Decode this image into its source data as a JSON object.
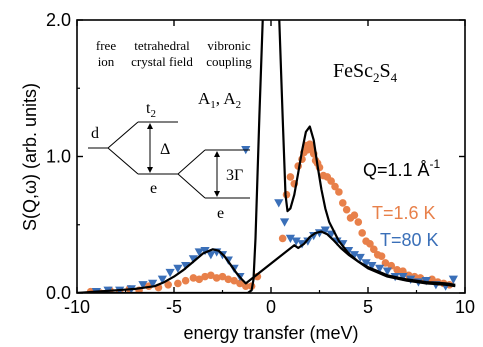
{
  "chart_data": {
    "type": "scatter",
    "xlabel": "energy transfer (meV)",
    "ylabel": "S(Q,ω) (arb. units)",
    "xlim": [
      -10,
      10
    ],
    "ylim": [
      0,
      2.0
    ],
    "x_ticks": [
      {
        "value": -10,
        "label": "-10"
      },
      {
        "value": -5,
        "label": "-5"
      },
      {
        "value": 0,
        "label": "0"
      },
      {
        "value": 5,
        "label": "5"
      },
      {
        "value": 10,
        "label": "10"
      }
    ],
    "y_ticks": [
      {
        "value": 0,
        "label": "0.0"
      },
      {
        "value": 1,
        "label": "1.0"
      },
      {
        "value": 2,
        "label": "2.0"
      }
    ],
    "grid": false,
    "legend_position": "right",
    "annotations": {
      "compound_base": "FeSc",
      "compound_sub1": "2",
      "compound_mid": "S",
      "compound_sub2": "4",
      "q_base": "Q=1.1 Å",
      "q_sup": "-1",
      "col_free_1": "free",
      "col_free_2": "ion",
      "col_tetra_1": "tetrahedral",
      "col_tetra_2": "crystal field",
      "col_vib_1": "vibronic",
      "col_vib_2": "coupling",
      "level_d": "d",
      "level_t_base": "t",
      "level_t_sub": "2",
      "level_e1": "e",
      "level_e2": "e",
      "delta": "Δ",
      "three_gamma": "3Γ",
      "a_label_1": "A",
      "a_sub_1": "1",
      "a_comma": ", A",
      "a_sub_2": "2"
    },
    "series": [
      {
        "name": "T=1.6 K",
        "color": "#e8804a",
        "marker": "circle",
        "x": [
          -9.3,
          -8.8,
          -8.3,
          -7.8,
          -7.3,
          -6.8,
          -6.3,
          -5.8,
          -5.3,
          -4.8,
          -4.4,
          -4.0,
          -3.7,
          -3.4,
          -3.1,
          -2.8,
          -2.5,
          -2.2,
          -1.9,
          -1.6,
          -1.3,
          -1.0,
          -0.7,
          0.6,
          0.8,
          1.0,
          1.2,
          1.4,
          1.6,
          1.7,
          1.8,
          1.9,
          2.0,
          2.1,
          2.2,
          2.3,
          2.4,
          2.5,
          2.7,
          2.9,
          3.1,
          3.3,
          3.5,
          3.7,
          3.9,
          4.1,
          4.3,
          4.5,
          4.7,
          4.9,
          5.1,
          5.3,
          5.5,
          5.7,
          5.9,
          6.2,
          6.5,
          6.8,
          7.1,
          7.4,
          7.7,
          8.0,
          8.3,
          8.6,
          8.9,
          9.2
        ],
        "y": [
          0.01,
          0.0,
          0.02,
          0.01,
          0.03,
          0.02,
          0.05,
          0.04,
          0.06,
          0.07,
          0.09,
          0.11,
          0.1,
          0.12,
          0.13,
          0.11,
          0.12,
          0.1,
          0.09,
          0.07,
          0.05,
          0.05,
          0.12,
          0.4,
          0.72,
          0.85,
          0.8,
          0.93,
          0.98,
          1.03,
          1.08,
          1.05,
          1.09,
          1.06,
          1.02,
          0.97,
          0.95,
          0.92,
          0.86,
          0.85,
          0.82,
          0.78,
          0.74,
          0.66,
          0.61,
          0.55,
          0.57,
          0.52,
          0.44,
          0.38,
          0.36,
          0.32,
          0.28,
          0.27,
          0.22,
          0.2,
          0.17,
          0.16,
          0.13,
          0.12,
          0.11,
          0.09,
          0.1,
          0.08,
          0.07,
          0.06
        ]
      },
      {
        "name": "T=80 K",
        "color": "#3a6fb8",
        "marker": "triangle-down",
        "x": [
          -9.0,
          -8.4,
          -7.8,
          -7.2,
          -6.6,
          -6.1,
          -5.6,
          -5.2,
          -4.8,
          -4.4,
          -4.0,
          -3.7,
          -3.4,
          -3.1,
          -2.8,
          -2.5,
          -2.2,
          -1.9,
          -1.6,
          -1.3,
          0.4,
          0.7,
          1.0,
          1.3,
          1.6,
          1.9,
          2.2,
          2.5,
          2.8,
          3.1,
          3.4,
          3.7,
          4.0,
          4.3,
          4.6,
          4.9,
          5.2,
          5.6,
          6.0,
          6.4,
          6.8,
          7.2,
          7.6,
          8.0,
          8.5,
          9.0,
          9.4
        ],
        "y": [
          0.01,
          0.02,
          0.02,
          0.03,
          0.06,
          0.07,
          0.1,
          0.15,
          0.18,
          0.2,
          0.25,
          0.3,
          0.31,
          0.28,
          0.3,
          0.28,
          0.24,
          0.18,
          0.12,
          1.05,
          0.66,
          0.52,
          0.4,
          0.38,
          0.36,
          0.38,
          0.42,
          0.44,
          0.46,
          0.43,
          0.38,
          0.36,
          0.31,
          0.28,
          0.26,
          0.22,
          0.2,
          0.18,
          0.16,
          0.12,
          0.12,
          0.1,
          0.08,
          0.09,
          0.06,
          0.05,
          0.1
        ]
      }
    ],
    "fits": [
      {
        "series": "T=1.6 K",
        "color": "#000000",
        "x": [
          -10,
          -9,
          -8,
          -7,
          -6,
          -5,
          -4,
          -3.5,
          -3,
          -2.5,
          -2,
          -1.5,
          -1.2,
          -1.0,
          -0.9,
          -0.8,
          -0.6,
          -0.4,
          -0.2,
          0,
          0.2,
          0.4,
          0.6,
          0.75,
          0.85,
          1.0,
          1.2,
          1.4,
          1.6,
          1.8,
          2.0,
          2.2,
          2.4,
          2.6,
          2.8,
          3.0,
          3.5,
          4.0,
          4.5,
          5.0,
          5.5,
          6,
          7,
          8,
          9,
          9.5
        ],
        "y": [
          0,
          0,
          0,
          0,
          0,
          0,
          0,
          0,
          0,
          0,
          0,
          0,
          0,
          0.02,
          0.1,
          0.4,
          1.3,
          2.1,
          2.1,
          2.1,
          2.1,
          2.1,
          1.3,
          0.72,
          0.6,
          0.62,
          0.72,
          0.88,
          1.04,
          1.18,
          1.22,
          1.12,
          0.93,
          0.76,
          0.62,
          0.52,
          0.38,
          0.29,
          0.23,
          0.18,
          0.15,
          0.12,
          0.09,
          0.07,
          0.06,
          0.05
        ]
      },
      {
        "series": "T=80 K",
        "color": "#000000",
        "x": [
          -10,
          -9,
          -8,
          -7,
          -6,
          -5.5,
          -5,
          -4.5,
          -4,
          -3.5,
          -3.0,
          -2.7,
          -2.4,
          -2.1,
          -1.8,
          -1.5,
          -1.3,
          1.2,
          1.4,
          1.7,
          2.0,
          2.3,
          2.6,
          2.9,
          3.2,
          3.6,
          4.0,
          4.5,
          5.0,
          5.5,
          6,
          7,
          8,
          9,
          9.5
        ],
        "y": [
          0,
          0.01,
          0.02,
          0.03,
          0.05,
          0.08,
          0.12,
          0.17,
          0.23,
          0.29,
          0.32,
          0.31,
          0.27,
          0.21,
          0.15,
          0.1,
          0.07,
          0.35,
          0.33,
          0.36,
          0.41,
          0.44,
          0.45,
          0.43,
          0.39,
          0.33,
          0.28,
          0.23,
          0.19,
          0.16,
          0.13,
          0.1,
          0.08,
          0.07,
          0.06
        ]
      }
    ]
  }
}
